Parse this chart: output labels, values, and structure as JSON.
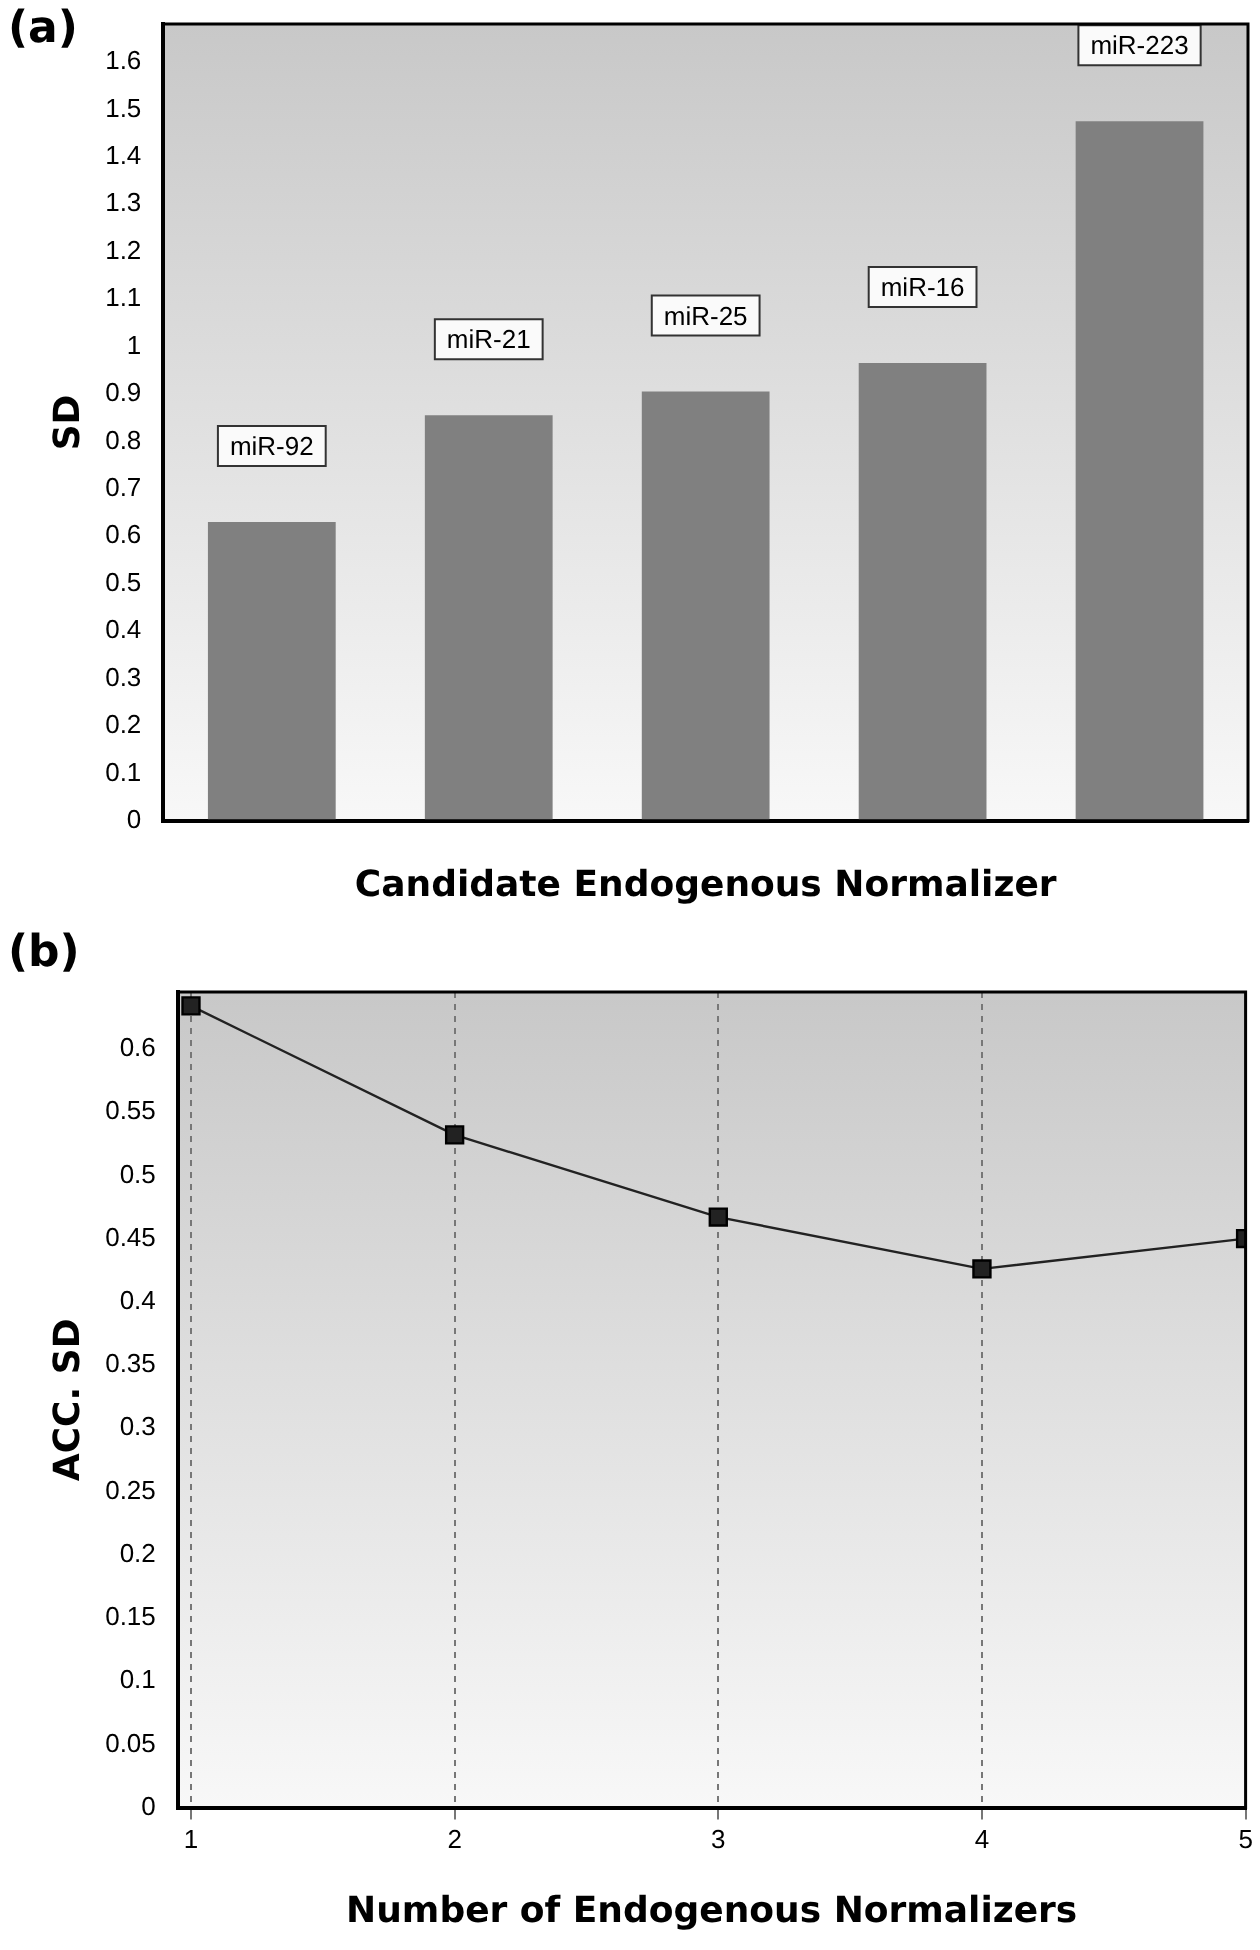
{
  "chart_data": [
    {
      "type": "bar",
      "title": "(a)",
      "xlabel": "Candidate Endogenous Normalizer",
      "ylabel": "SD",
      "categories": [
        "miR-92",
        "miR-21",
        "miR-25",
        "miR-16",
        "miR-223"
      ],
      "values": [
        0.63,
        0.855,
        0.905,
        0.965,
        1.475
      ],
      "color": "#808080",
      "ylim": [
        0,
        1.68
      ],
      "yticks": [
        0,
        0.1,
        0.2,
        0.3,
        0.4,
        0.5,
        0.6,
        0.7,
        0.8,
        0.9,
        1,
        1.1,
        1.2,
        1.3,
        1.4,
        1.5,
        1.6
      ],
      "grid": false
    },
    {
      "type": "line",
      "title": "(b)",
      "xlabel": "Number of Endogenous Normalizers",
      "ylabel": "ACC. SD",
      "x": [
        1,
        2,
        3,
        4,
        5
      ],
      "values": [
        0.634,
        0.532,
        0.467,
        0.426,
        0.45
      ],
      "color": "#222222",
      "xlim": [
        0.95,
        5
      ],
      "xticks": [
        1,
        2,
        3,
        4,
        5
      ],
      "ylim": [
        0,
        0.645
      ],
      "yticks": [
        0,
        0.05,
        0.1,
        0.15,
        0.2,
        0.25,
        0.3,
        0.35,
        0.4,
        0.45,
        0.5,
        0.55,
        0.6
      ],
      "grid": "x",
      "marker": "square",
      "line_style": "solid"
    }
  ]
}
